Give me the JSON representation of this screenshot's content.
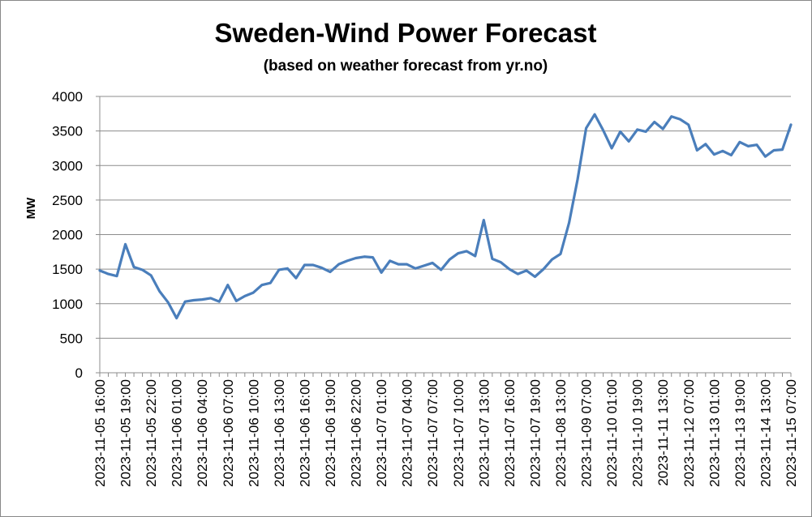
{
  "chart_data": {
    "type": "line",
    "title": "Sweden-Wind Power Forecast",
    "subtitle": "(based on weather forecast from yr.no)",
    "xlabel": "",
    "ylabel": "MW",
    "ylim": [
      0,
      4000
    ],
    "yticks": [
      0,
      500,
      1000,
      1500,
      2000,
      2500,
      3000,
      3500,
      4000
    ],
    "grid": true,
    "legend": "none",
    "series_color": "#4a7ebb",
    "x_tick_labels": [
      "2023-11-05 16:00",
      "2023-11-05 19:00",
      "2023-11-05 22:00",
      "2023-11-06 01:00",
      "2023-11-06 04:00",
      "2023-11-06 07:00",
      "2023-11-06 10:00",
      "2023-11-06 13:00",
      "2023-11-06 16:00",
      "2023-11-06 19:00",
      "2023-11-06 22:00",
      "2023-11-07 01:00",
      "2023-11-07 04:00",
      "2023-11-07 07:00",
      "2023-11-07 10:00",
      "2023-11-07 13:00",
      "2023-11-07 16:00",
      "2023-11-07 19:00",
      "2023-11-08 13:00",
      "2023-11-09 07:00",
      "2023-11-10 01:00",
      "2023-11-10 19:00",
      "2023-11-11 13:00",
      "2023-11-12 07:00",
      "2023-11-13 01:00",
      "2023-11-13 19:00",
      "2023-11-14 13:00",
      "2023-11-15 07:00"
    ],
    "values": [
      1480,
      1430,
      1400,
      1860,
      1530,
      1490,
      1410,
      1180,
      1020,
      790,
      1030,
      1050,
      1060,
      1080,
      1030,
      1270,
      1040,
      1110,
      1160,
      1270,
      1300,
      1490,
      1510,
      1370,
      1560,
      1560,
      1520,
      1460,
      1570,
      1620,
      1660,
      1680,
      1670,
      1450,
      1620,
      1570,
      1570,
      1510,
      1550,
      1590,
      1490,
      1640,
      1730,
      1760,
      1690,
      2210,
      1650,
      1600,
      1500,
      1430,
      1480,
      1390,
      1500,
      1640,
      1720,
      2170,
      2800,
      3540,
      3740,
      3510,
      3250,
      3490,
      3350,
      3520,
      3490,
      3630,
      3530,
      3710,
      3670,
      3590,
      3220,
      3310,
      3160,
      3210,
      3150,
      3340,
      3280,
      3300,
      3130,
      3220,
      3230,
      3590
    ]
  }
}
